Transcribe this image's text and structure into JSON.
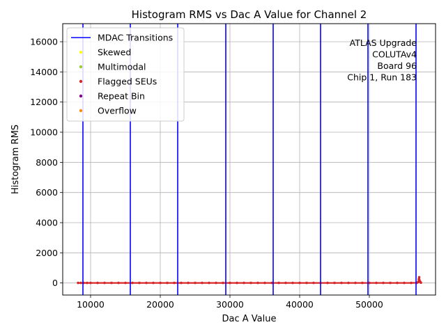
{
  "chart_data": {
    "type": "scatter",
    "title": "Histogram RMS vs Dac A Value for Channel 2",
    "xlabel": "Dac A Value",
    "ylabel": "Histogram RMS",
    "xlim": [
      6000,
      59500
    ],
    "ylim": [
      -800,
      17200
    ],
    "xticks": [
      10000,
      20000,
      30000,
      40000,
      50000
    ],
    "yticks": [
      0,
      2000,
      4000,
      6000,
      8000,
      10000,
      12000,
      14000,
      16000
    ],
    "grid": true,
    "legend_position": "top-left",
    "mdac_transitions": {
      "name": "MDAC Transitions",
      "color": "#0000ff",
      "x": [
        8900,
        15700,
        22500,
        29400,
        36200,
        43000,
        49800,
        56700
      ]
    },
    "series": [
      {
        "name": "Skewed",
        "color": "#ffff00",
        "points": []
      },
      {
        "name": "Multimodal",
        "color": "#9acd32",
        "points": []
      },
      {
        "name": "Flagged SEUs",
        "color": "#d62728",
        "points": [
          [
            8200,
            5
          ],
          [
            8600,
            5
          ],
          [
            9000,
            5
          ],
          [
            9500,
            5
          ],
          [
            10000,
            5
          ],
          [
            11000,
            5
          ],
          [
            12000,
            5
          ],
          [
            13000,
            5
          ],
          [
            14000,
            5
          ],
          [
            15000,
            5
          ],
          [
            16000,
            5
          ],
          [
            17000,
            5
          ],
          [
            18000,
            5
          ],
          [
            19000,
            5
          ],
          [
            20000,
            5
          ],
          [
            21000,
            5
          ],
          [
            22000,
            5
          ],
          [
            23000,
            5
          ],
          [
            24000,
            5
          ],
          [
            25000,
            5
          ],
          [
            26000,
            5
          ],
          [
            27000,
            5
          ],
          [
            28000,
            5
          ],
          [
            29000,
            5
          ],
          [
            30000,
            5
          ],
          [
            31000,
            5
          ],
          [
            32000,
            5
          ],
          [
            33000,
            5
          ],
          [
            34000,
            5
          ],
          [
            35000,
            5
          ],
          [
            36000,
            5
          ],
          [
            37000,
            5
          ],
          [
            38000,
            5
          ],
          [
            39000,
            5
          ],
          [
            40000,
            5
          ],
          [
            41000,
            5
          ],
          [
            42000,
            5
          ],
          [
            43000,
            5
          ],
          [
            44000,
            5
          ],
          [
            45000,
            5
          ],
          [
            46000,
            5
          ],
          [
            47000,
            5
          ],
          [
            48000,
            5
          ],
          [
            49000,
            5
          ],
          [
            50000,
            5
          ],
          [
            51000,
            5
          ],
          [
            52000,
            5
          ],
          [
            53000,
            5
          ],
          [
            54000,
            5
          ],
          [
            55000,
            5
          ],
          [
            56000,
            5
          ],
          [
            56800,
            10
          ],
          [
            57000,
            60
          ],
          [
            57100,
            250
          ],
          [
            57150,
            380
          ],
          [
            57200,
            180
          ],
          [
            57300,
            80
          ],
          [
            57400,
            20
          ]
        ]
      },
      {
        "name": "Repeat Bin",
        "color": "#800080",
        "points": []
      },
      {
        "name": "Overflow",
        "color": "#ff8c00",
        "points": []
      }
    ],
    "annotation": [
      "ATLAS Upgrade",
      "COLUTAv4",
      "Board 96",
      "Chip 1, Run 183"
    ]
  }
}
